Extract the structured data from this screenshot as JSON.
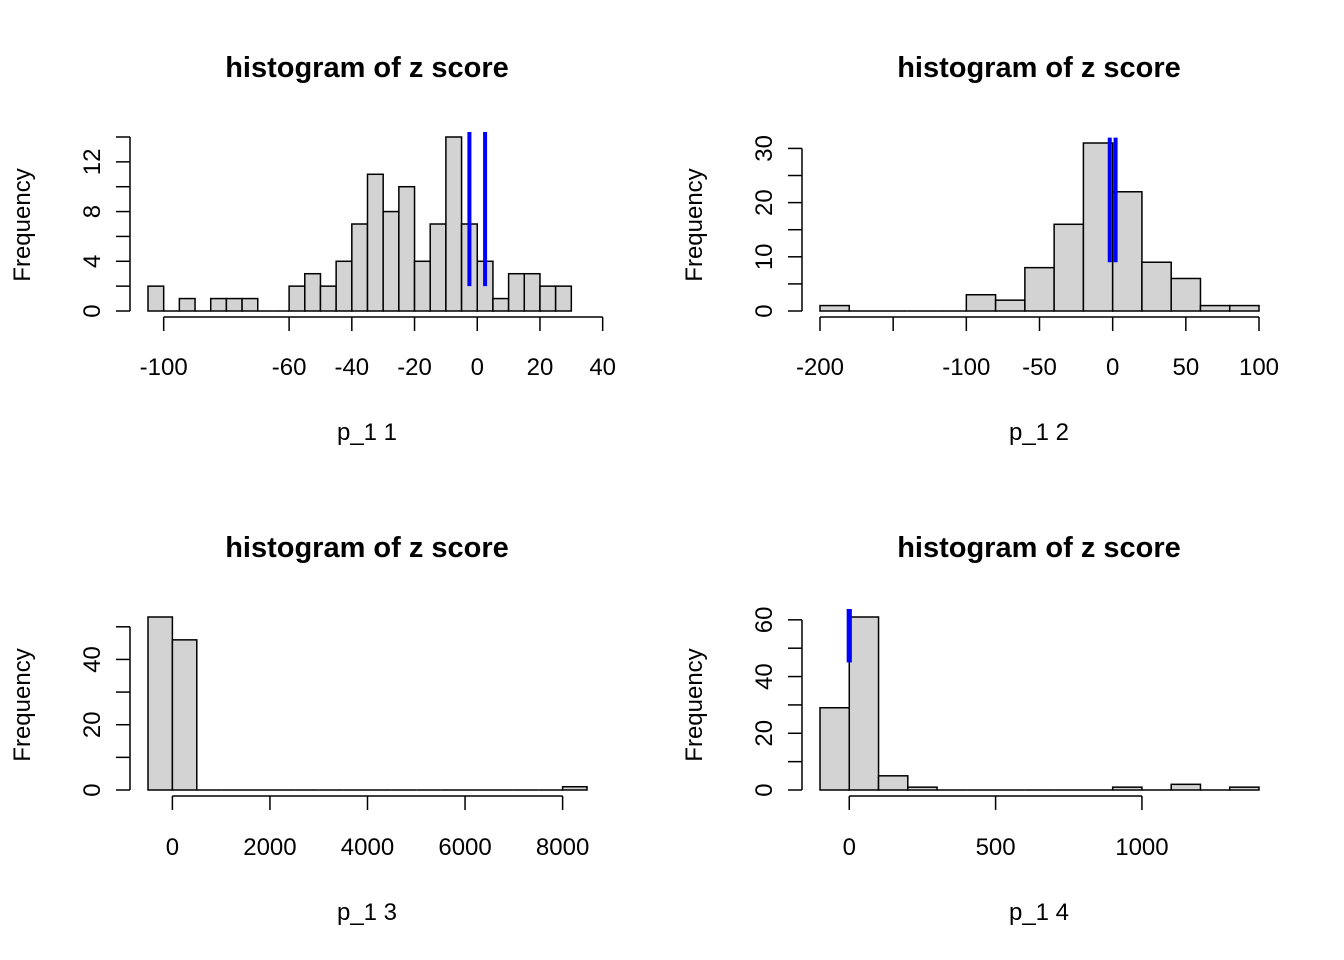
{
  "chart_data": [
    {
      "type": "bar",
      "title": "histogram of z score",
      "xlabel": "p_1 1",
      "ylabel": "Frequency",
      "bin_width": 5,
      "xlim": [
        -105,
        35
      ],
      "ylim": [
        0,
        14
      ],
      "xticks": [
        -100,
        -60,
        -40,
        -20,
        0,
        20,
        40
      ],
      "yticks": [
        0,
        4,
        8,
        12
      ],
      "bins": [
        {
          "x0": -105,
          "x1": -100,
          "count": 2
        },
        {
          "x0": -100,
          "x1": -95,
          "count": 0
        },
        {
          "x0": -95,
          "x1": -90,
          "count": 1
        },
        {
          "x0": -90,
          "x1": -85,
          "count": 0
        },
        {
          "x0": -85,
          "x1": -80,
          "count": 1
        },
        {
          "x0": -80,
          "x1": -75,
          "count": 1
        },
        {
          "x0": -75,
          "x1": -70,
          "count": 1
        },
        {
          "x0": -70,
          "x1": -65,
          "count": 0
        },
        {
          "x0": -65,
          "x1": -60,
          "count": 0
        },
        {
          "x0": -60,
          "x1": -55,
          "count": 2
        },
        {
          "x0": -55,
          "x1": -50,
          "count": 3
        },
        {
          "x0": -50,
          "x1": -45,
          "count": 2
        },
        {
          "x0": -45,
          "x1": -40,
          "count": 4
        },
        {
          "x0": -40,
          "x1": -35,
          "count": 7
        },
        {
          "x0": -35,
          "x1": -30,
          "count": 11
        },
        {
          "x0": -30,
          "x1": -25,
          "count": 8
        },
        {
          "x0": -25,
          "x1": -20,
          "count": 10
        },
        {
          "x0": -20,
          "x1": -15,
          "count": 4
        },
        {
          "x0": -15,
          "x1": -10,
          "count": 7
        },
        {
          "x0": -10,
          "x1": -5,
          "count": 14
        },
        {
          "x0": -5,
          "x1": 0,
          "count": 7
        },
        {
          "x0": 0,
          "x1": 5,
          "count": 4
        },
        {
          "x0": 5,
          "x1": 10,
          "count": 1
        },
        {
          "x0": 10,
          "x1": 15,
          "count": 3
        },
        {
          "x0": 15,
          "x1": 20,
          "count": 3
        },
        {
          "x0": 20,
          "x1": 25,
          "count": 2
        },
        {
          "x0": 25,
          "x1": 30,
          "count": 2
        }
      ],
      "vertical_lines": [
        {
          "x": -2.5,
          "y_from": 2,
          "y_to": 14.4,
          "color": "#0000ff"
        },
        {
          "x": 2.5,
          "y_from": 2,
          "y_to": 14.4,
          "color": "#0000ff"
        }
      ]
    },
    {
      "type": "bar",
      "title": "histogram of z score",
      "xlabel": "p_1 2",
      "ylabel": "Frequency",
      "bin_width": 20,
      "xlim": [
        -200,
        100
      ],
      "ylim": [
        0,
        31
      ],
      "xticks": [
        -200,
        -150,
        -100,
        -50,
        0,
        50,
        100
      ],
      "xticklabels": [
        "-200",
        "",
        "-100",
        "-50",
        "0",
        "50",
        "100"
      ],
      "yticks": [
        0,
        10,
        20,
        30
      ],
      "bins": [
        {
          "x0": -200,
          "x1": -180,
          "count": 1
        },
        {
          "x0": -180,
          "x1": -160,
          "count": 0
        },
        {
          "x0": -160,
          "x1": -140,
          "count": 0
        },
        {
          "x0": -140,
          "x1": -120,
          "count": 0
        },
        {
          "x0": -120,
          "x1": -100,
          "count": 0
        },
        {
          "x0": -100,
          "x1": -80,
          "count": 3
        },
        {
          "x0": -80,
          "x1": -60,
          "count": 2
        },
        {
          "x0": -60,
          "x1": -40,
          "count": 8
        },
        {
          "x0": -40,
          "x1": -20,
          "count": 16
        },
        {
          "x0": -20,
          "x1": 0,
          "count": 31
        },
        {
          "x0": 0,
          "x1": 20,
          "count": 22
        },
        {
          "x0": 20,
          "x1": 40,
          "count": 9
        },
        {
          "x0": 40,
          "x1": 60,
          "count": 6
        },
        {
          "x0": 60,
          "x1": 80,
          "count": 1
        },
        {
          "x0": 80,
          "x1": 100,
          "count": 1
        }
      ],
      "vertical_lines": [
        {
          "x": -2,
          "y_from": 9,
          "y_to": 32,
          "color": "#0000ff"
        },
        {
          "x": 2,
          "y_from": 9,
          "y_to": 32,
          "color": "#0000ff"
        }
      ]
    },
    {
      "type": "bar",
      "title": "histogram of z score",
      "xlabel": "p_1 3",
      "ylabel": "Frequency",
      "bin_width": 500,
      "xlim": [
        -500,
        8500
      ],
      "ylim": [
        0,
        53
      ],
      "xticks": [
        0,
        2000,
        4000,
        6000,
        8000
      ],
      "yticks": [
        0,
        20,
        40
      ],
      "bins": [
        {
          "x0": -500,
          "x1": 0,
          "count": 53
        },
        {
          "x0": 0,
          "x1": 500,
          "count": 46
        },
        {
          "x0": 500,
          "x1": 1000,
          "count": 0
        },
        {
          "x0": 1000,
          "x1": 1500,
          "count": 0
        },
        {
          "x0": 1500,
          "x1": 2000,
          "count": 0
        },
        {
          "x0": 2000,
          "x1": 2500,
          "count": 0
        },
        {
          "x0": 2500,
          "x1": 3000,
          "count": 0
        },
        {
          "x0": 3000,
          "x1": 3500,
          "count": 0
        },
        {
          "x0": 3500,
          "x1": 4000,
          "count": 0
        },
        {
          "x0": 4000,
          "x1": 4500,
          "count": 0
        },
        {
          "x0": 4500,
          "x1": 5000,
          "count": 0
        },
        {
          "x0": 5000,
          "x1": 5500,
          "count": 0
        },
        {
          "x0": 5500,
          "x1": 6000,
          "count": 0
        },
        {
          "x0": 6000,
          "x1": 6500,
          "count": 0
        },
        {
          "x0": 6500,
          "x1": 7000,
          "count": 0
        },
        {
          "x0": 7000,
          "x1": 7500,
          "count": 0
        },
        {
          "x0": 7500,
          "x1": 8000,
          "count": 0
        },
        {
          "x0": 8000,
          "x1": 8500,
          "count": 1
        }
      ],
      "vertical_lines": []
    },
    {
      "type": "bar",
      "title": "histogram of z score",
      "xlabel": "p_1 4",
      "ylabel": "Frequency",
      "bin_width": 100,
      "xlim": [
        -100,
        1400
      ],
      "ylim": [
        0,
        61
      ],
      "xticks": [
        0,
        500,
        1000
      ],
      "yticks": [
        0,
        20,
        40,
        60
      ],
      "bins": [
        {
          "x0": -100,
          "x1": 0,
          "count": 29
        },
        {
          "x0": 0,
          "x1": 100,
          "count": 61
        },
        {
          "x0": 100,
          "x1": 200,
          "count": 5
        },
        {
          "x0": 200,
          "x1": 300,
          "count": 1
        },
        {
          "x0": 300,
          "x1": 400,
          "count": 0
        },
        {
          "x0": 400,
          "x1": 500,
          "count": 0
        },
        {
          "x0": 500,
          "x1": 600,
          "count": 0
        },
        {
          "x0": 600,
          "x1": 700,
          "count": 0
        },
        {
          "x0": 700,
          "x1": 800,
          "count": 0
        },
        {
          "x0": 800,
          "x1": 900,
          "count": 0
        },
        {
          "x0": 900,
          "x1": 1000,
          "count": 1
        },
        {
          "x0": 1000,
          "x1": 1100,
          "count": 0
        },
        {
          "x0": 1100,
          "x1": 1200,
          "count": 2
        },
        {
          "x0": 1200,
          "x1": 1300,
          "count": 0
        },
        {
          "x0": 1300,
          "x1": 1400,
          "count": 1
        }
      ],
      "vertical_lines": [
        {
          "x": -2,
          "y_from": 45,
          "y_to": 64,
          "color": "#0000ff"
        },
        {
          "x": 2,
          "y_from": 45,
          "y_to": 64,
          "color": "#0000ff"
        }
      ]
    }
  ]
}
